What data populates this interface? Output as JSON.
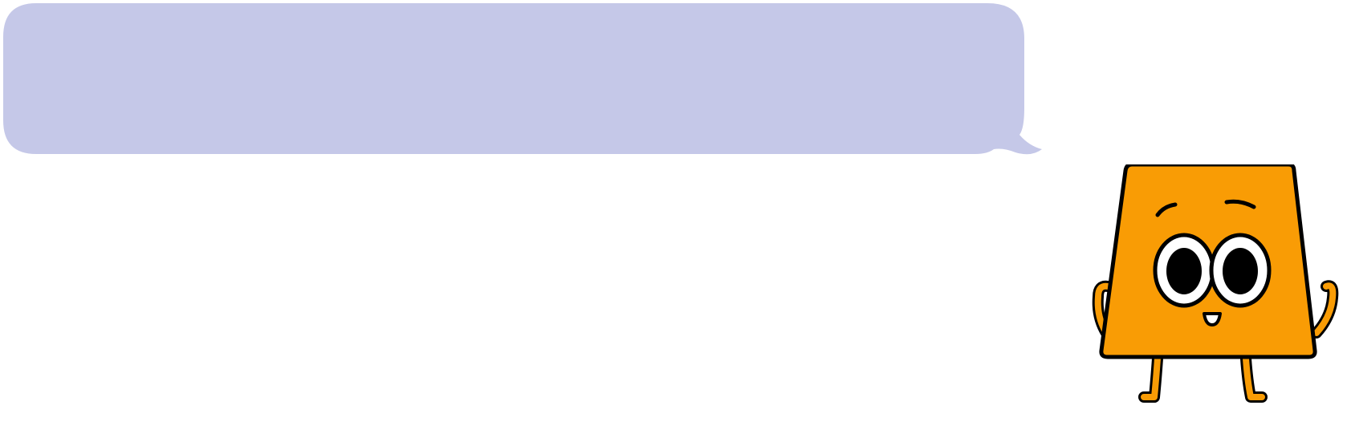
{
  "speech_bubble": {
    "text": "",
    "fill_color": "#c5c8e8"
  },
  "mascot": {
    "shape": "trapezoid-character",
    "body_color": "#f99c05",
    "outline_color": "#000000",
    "icon": "smiling-trapezoid-mascot-icon"
  }
}
